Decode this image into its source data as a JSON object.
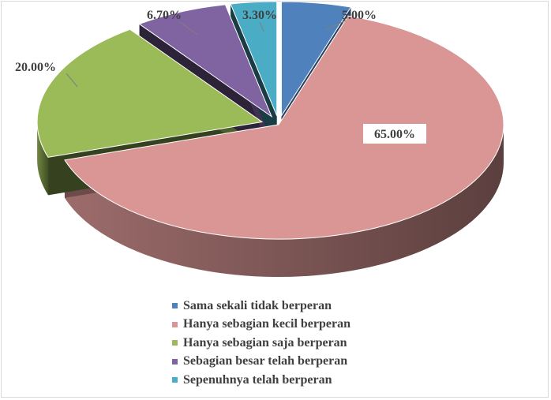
{
  "chart_data": {
    "type": "pie",
    "title": "",
    "legend_position": "bottom",
    "series": [
      {
        "name": "Sama sekali tidak berperan",
        "value": 5.0,
        "label": "5.00%",
        "color": "#4F81BD"
      },
      {
        "name": "Hanya sebagian kecil berperan",
        "value": 65.0,
        "label": "65.00%",
        "color": "#D99694"
      },
      {
        "name": "Hanya sebagian saja berperan",
        "value": 20.0,
        "label": "20.00%",
        "color": "#9BBB59"
      },
      {
        "name": "Sebagian besar telah berperan",
        "value": 6.7,
        "label": "6.70%",
        "color": "#8064A2"
      },
      {
        "name": "Sepenuhnya telah berperan",
        "value": 3.3,
        "label": "3.30%",
        "color": "#4BACC6"
      }
    ]
  }
}
